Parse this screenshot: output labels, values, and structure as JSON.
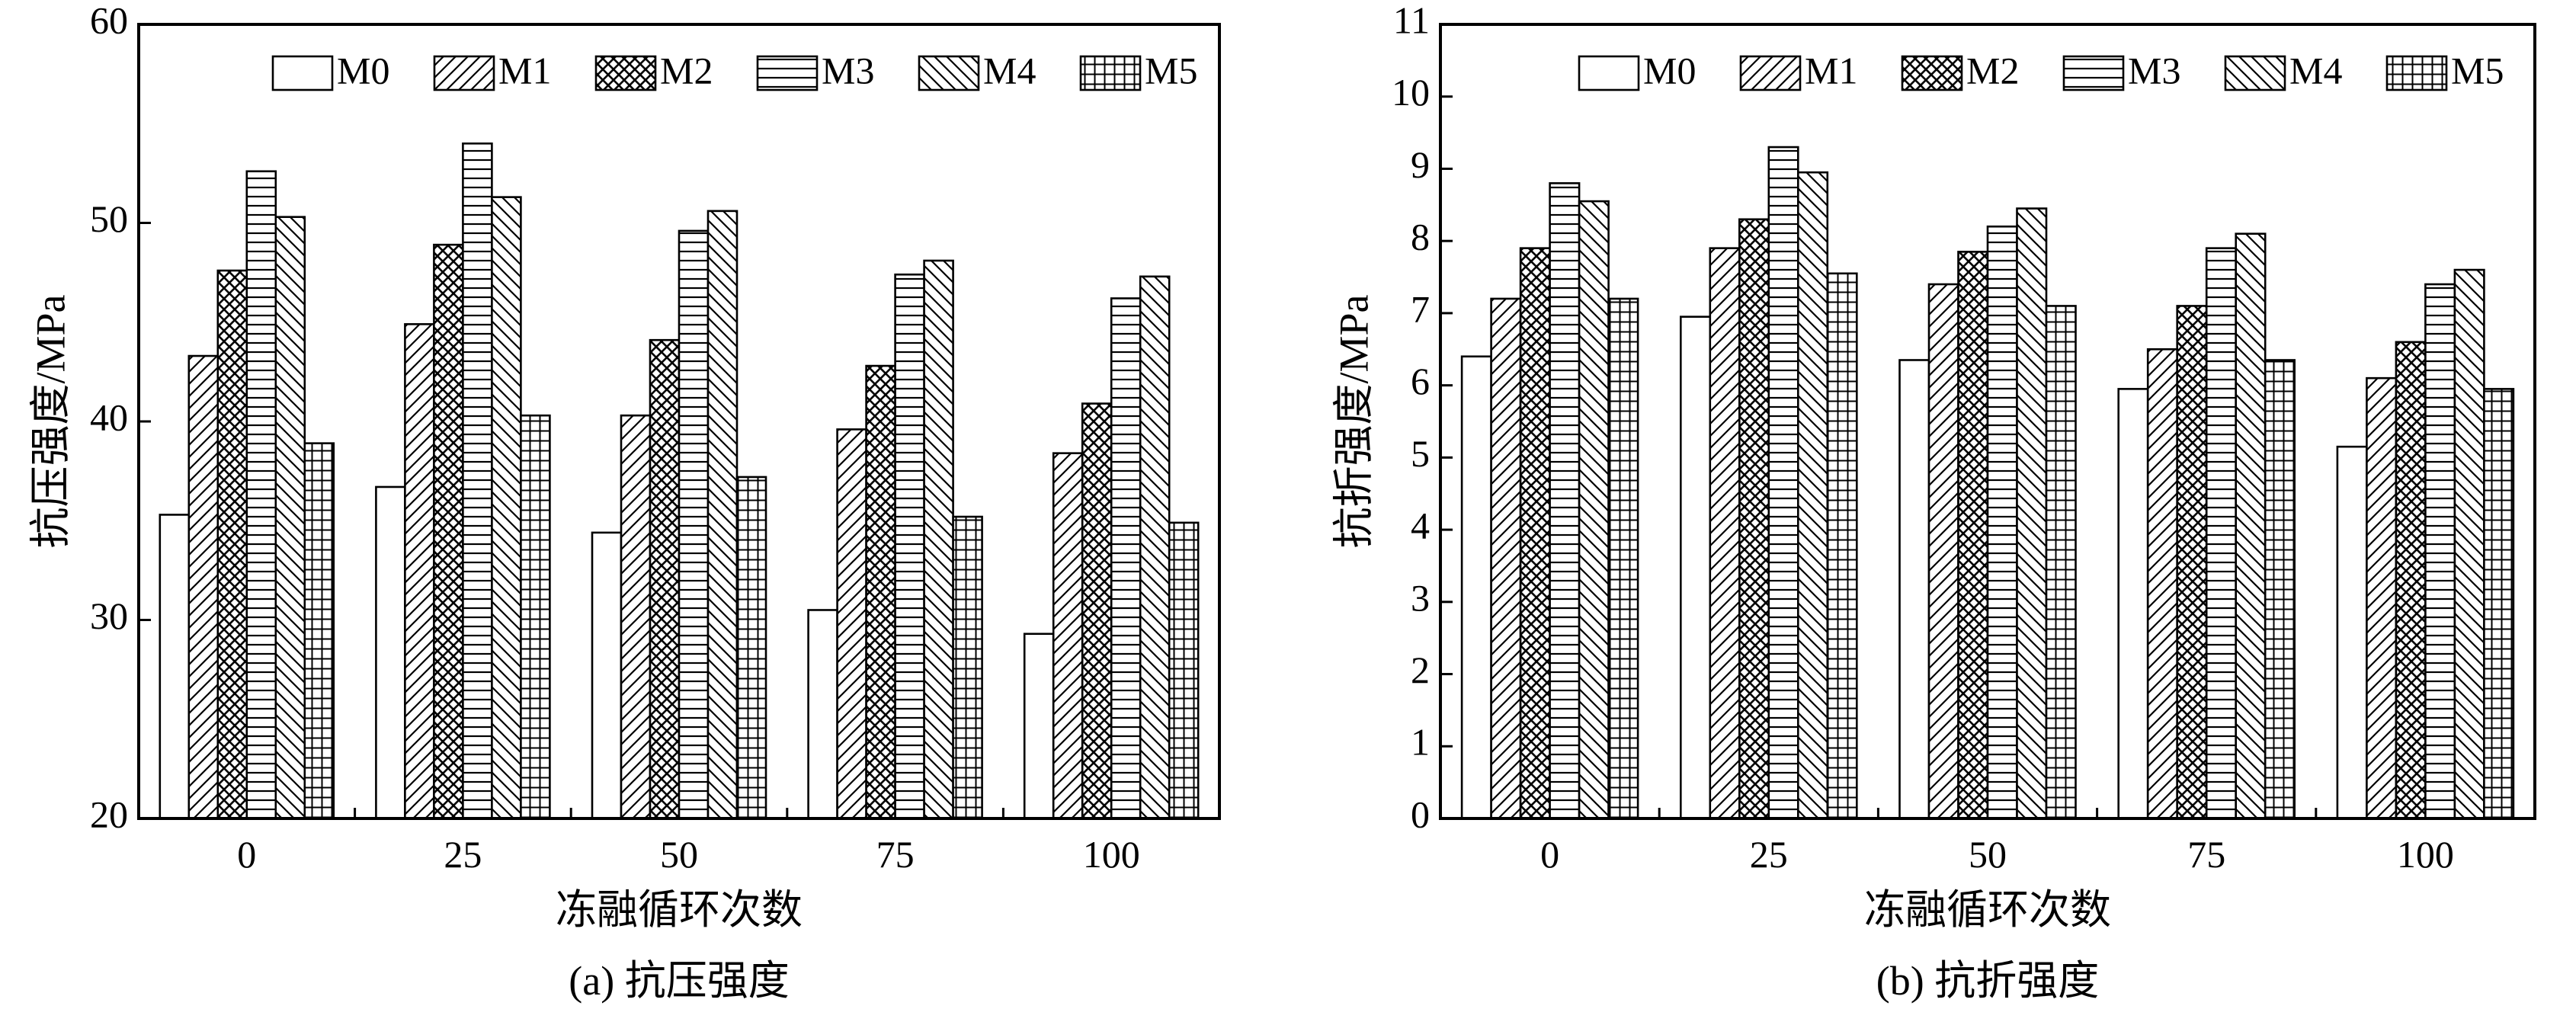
{
  "charts": [
    {
      "id": "a",
      "caption": "(a) 抗压强度",
      "legend_names": [
        "M0",
        "M1",
        "M2",
        "M3",
        "M4",
        "M5"
      ],
      "patterns": [
        "blank",
        "diag-right",
        "crosshatch",
        "hlines",
        "diag-left",
        "grid"
      ],
      "chart_data": {
        "type": "bar",
        "title": "",
        "xlabel": "冻融循环次数",
        "ylabel": "抗压强度/MPa",
        "categories": [
          "0",
          "25",
          "50",
          "75",
          "100"
        ],
        "ylim": [
          20,
          60
        ],
        "yticks": [
          "20",
          "30",
          "40",
          "50",
          "60"
        ],
        "grid": false,
        "legend_position": "top",
        "series": [
          {
            "name": "M0",
            "values": [
              35.3,
              36.7,
              34.4,
              30.5,
              29.3
            ]
          },
          {
            "name": "M1",
            "values": [
              43.3,
              44.9,
              40.3,
              39.6,
              38.4
            ]
          },
          {
            "name": "M2",
            "values": [
              47.6,
              48.9,
              44.1,
              42.8,
              40.9
            ]
          },
          {
            "name": "M3",
            "values": [
              52.6,
              54.0,
              49.6,
              47.4,
              46.2
            ]
          },
          {
            "name": "M4",
            "values": [
              50.3,
              51.3,
              50.6,
              48.1,
              47.3
            ]
          },
          {
            "name": "M5",
            "values": [
              38.9,
              40.3,
              37.2,
              35.2,
              34.9
            ]
          }
        ]
      }
    },
    {
      "id": "b",
      "caption": "(b) 抗折强度",
      "legend_names": [
        "M0",
        "M1",
        "M2",
        "M3",
        "M4",
        "M5"
      ],
      "patterns": [
        "blank",
        "diag-right",
        "crosshatch",
        "hlines",
        "diag-left",
        "grid"
      ],
      "chart_data": {
        "type": "bar",
        "title": "",
        "xlabel": "冻融循环次数",
        "ylabel": "抗折强度/MPa",
        "categories": [
          "0",
          "25",
          "50",
          "75",
          "100"
        ],
        "ylim": [
          0,
          11
        ],
        "yticks": [
          "0",
          "1",
          "2",
          "3",
          "4",
          "5",
          "6",
          "7",
          "8",
          "9",
          "10",
          "11"
        ],
        "grid": false,
        "legend_position": "top",
        "series": [
          {
            "name": "M0",
            "values": [
              6.4,
              6.95,
              6.35,
              5.95,
              5.15
            ]
          },
          {
            "name": "M1",
            "values": [
              7.2,
              7.9,
              7.4,
              6.5,
              6.1
            ]
          },
          {
            "name": "M2",
            "values": [
              7.9,
              8.3,
              7.85,
              7.1,
              6.6
            ]
          },
          {
            "name": "M3",
            "values": [
              8.8,
              9.3,
              8.2,
              7.9,
              7.4
            ]
          },
          {
            "name": "M4",
            "values": [
              8.55,
              8.95,
              8.45,
              8.1,
              7.6
            ]
          },
          {
            "name": "M5",
            "values": [
              7.2,
              7.55,
              7.1,
              6.35,
              5.95
            ]
          }
        ]
      }
    }
  ]
}
